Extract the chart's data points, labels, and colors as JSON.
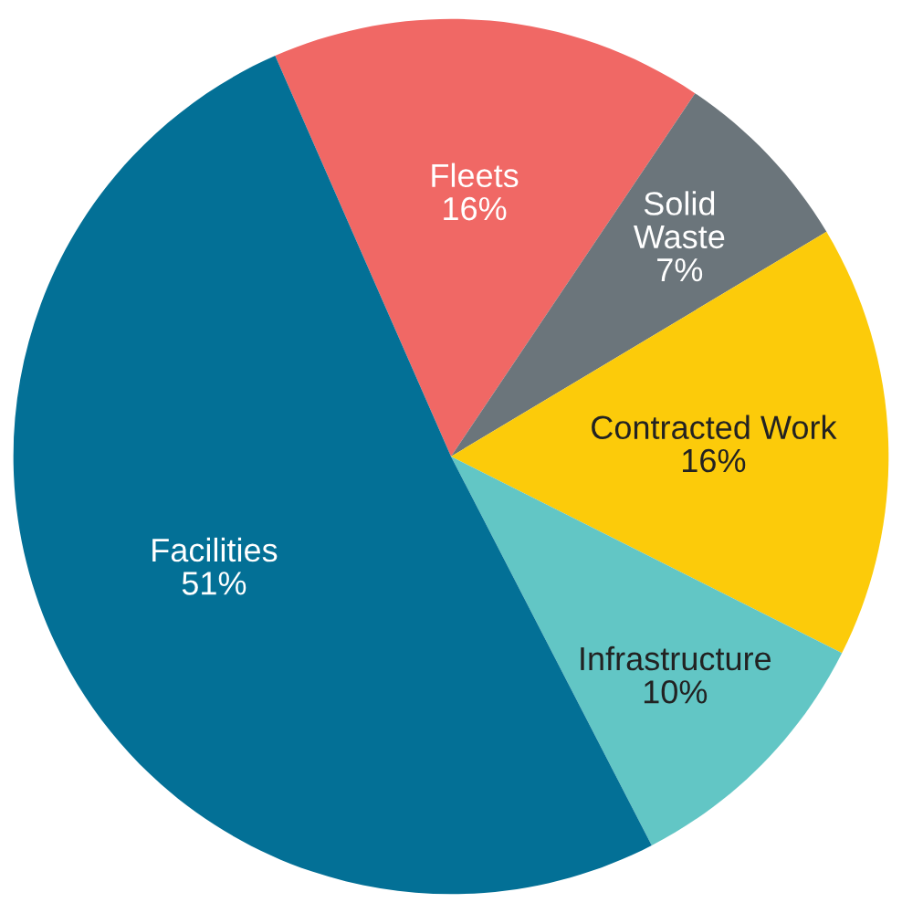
{
  "chart_data": {
    "type": "pie",
    "categories": [
      "Fleets",
      "Solid\nWaste",
      "Contracted Work",
      "Infrastructure",
      "Facilities"
    ],
    "values": [
      16,
      7,
      16,
      10,
      51
    ],
    "value_labels": [
      "16%",
      "7%",
      "16%",
      "10%",
      "51%"
    ],
    "colors": [
      "#f06865",
      "#6b757b",
      "#fccb0a",
      "#62c6c5",
      "#037096"
    ],
    "legend": false
  }
}
